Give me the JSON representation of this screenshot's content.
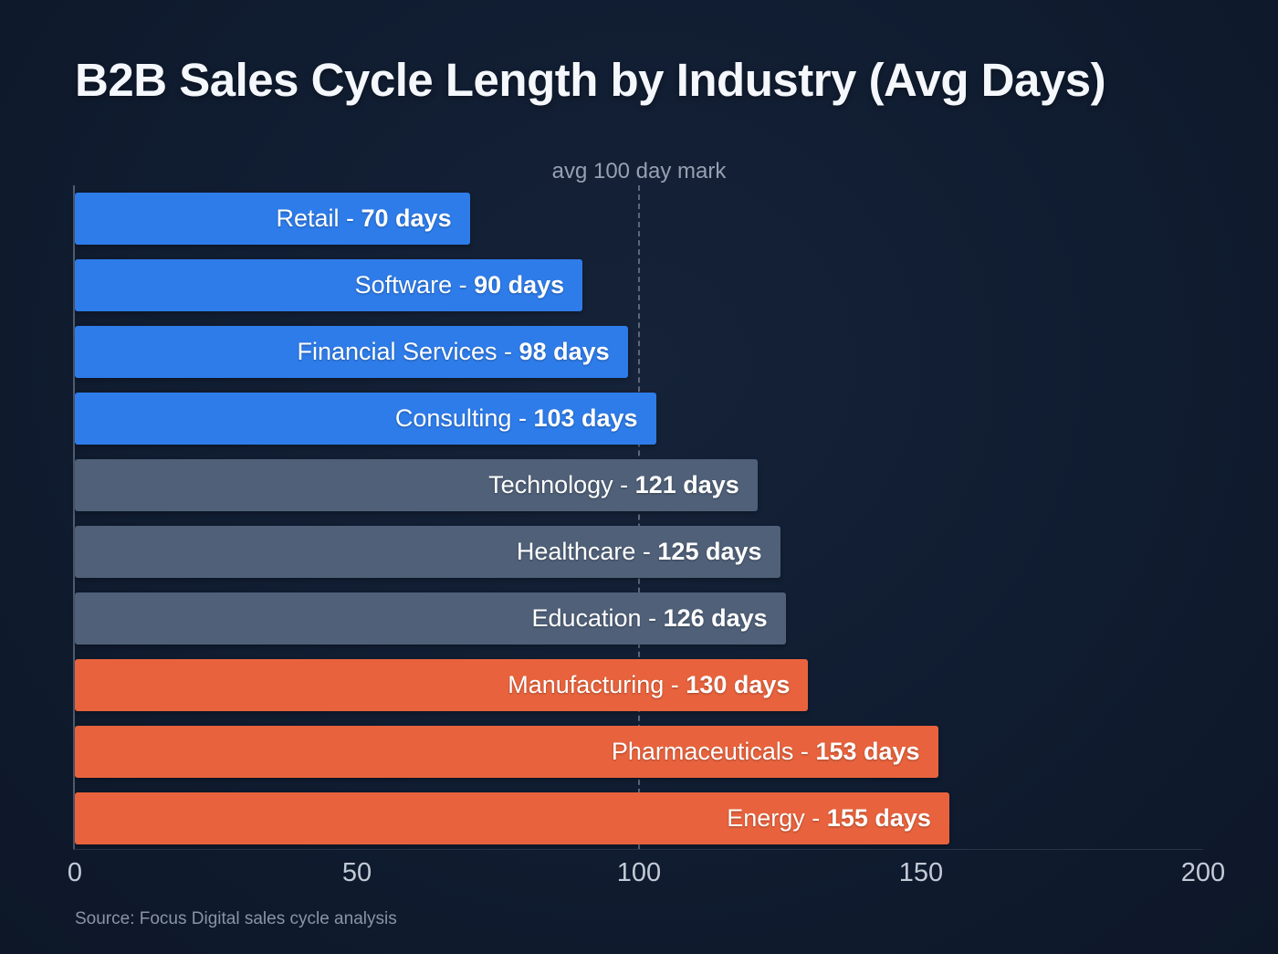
{
  "title": "B2B Sales Cycle Length by Industry (Avg Days)",
  "source": "Source: Focus Digital sales cycle analysis",
  "colors": {
    "background": "#101c30",
    "fast_bar_blue": "#2e7ce9",
    "mid_bar_slate": "#4f6078",
    "slow_bar_orange": "#e8633d",
    "title_text": "#f4f7fb",
    "tick_text": "#c3cad6",
    "reference_line": "#96a0b1"
  },
  "chart_data": {
    "type": "bar",
    "orientation": "horizontal",
    "title": "B2B Sales Cycle Length by Industry (Avg Days)",
    "categories": [
      "Retail",
      "Software",
      "Financial Services",
      "Consulting",
      "Technology",
      "Healthcare",
      "Education",
      "Manufacturing",
      "Pharmaceuticals",
      "Energy"
    ],
    "values": [
      70,
      90,
      98,
      103,
      121,
      125,
      126,
      130,
      153,
      155
    ],
    "value_suffix": "days",
    "label_separator": " - ",
    "bar_colors": [
      "#2e7ce9",
      "#2e7ce9",
      "#2e7ce9",
      "#2e7ce9",
      "#4f6078",
      "#4f6078",
      "#4f6078",
      "#e8633d",
      "#e8633d",
      "#e8633d"
    ],
    "xlabel": "",
    "ylabel": "",
    "xlim": [
      0,
      200
    ],
    "x_ticks": [
      0,
      50,
      100,
      150,
      200
    ],
    "grid": false,
    "legend": false,
    "reference_line": {
      "value": 100,
      "label": "avg 100 day mark"
    }
  }
}
